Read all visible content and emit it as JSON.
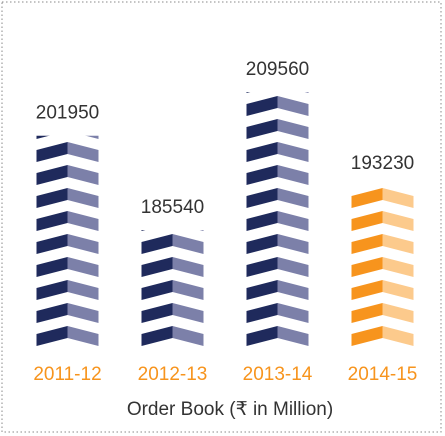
{
  "chart_data": {
    "type": "pictograph-bar",
    "categories": [
      "2011-12",
      "2012-13",
      "2013-14",
      "2014-15"
    ],
    "values": [
      201950,
      185540,
      209560,
      193230
    ],
    "colors": [
      [
        "#1f2a5c",
        "#7c80a9"
      ],
      [
        "#1f2a5c",
        "#7c80a9"
      ],
      [
        "#1f2a5c",
        "#7c80a9"
      ],
      [
        "#f7941d",
        "#fcca8c"
      ]
    ],
    "category_color": "#f7941d",
    "x_label": "Order Book (₹ in Million)",
    "ylim": [
      165000,
      212000
    ]
  }
}
